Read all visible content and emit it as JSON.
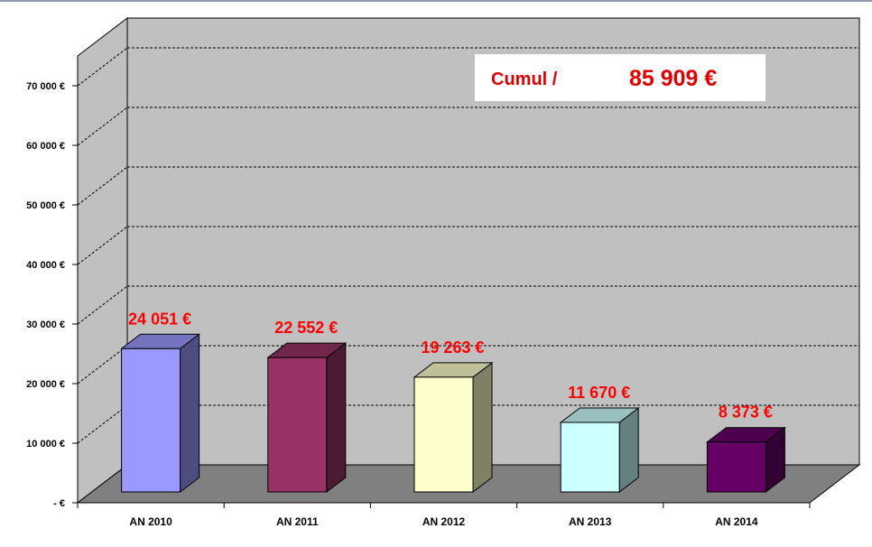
{
  "chart_data": {
    "type": "bar",
    "categories": [
      "AN 2010",
      "AN 2011",
      "AN 2012",
      "AN 2013",
      "AN 2014"
    ],
    "values": [
      24051,
      22552,
      19263,
      11670,
      8373
    ],
    "data_labels": [
      "24 051 €",
      "22 552 €",
      "19 263 €",
      "11 670 €",
      "8 373 €"
    ],
    "bar_colors": [
      "#9999ff",
      "#993366",
      "#ffffcc",
      "#ccffff",
      "#660066"
    ],
    "yticks": [
      0,
      10000,
      20000,
      30000,
      40000,
      50000,
      60000,
      70000
    ],
    "ytick_labels": [
      "-   €",
      "10 000 €",
      "20 000 €",
      "30 000 €",
      "40 000 €",
      "50 000 €",
      "60 000 €",
      "70 000 €"
    ],
    "ylim": [
      0,
      75000
    ],
    "grid": true,
    "three_d": true,
    "title": "",
    "xlabel": "",
    "ylabel": ""
  },
  "annotation": {
    "cumul_label": "Cumul /",
    "cumul_value": "85 909 €",
    "color": "#e00000"
  },
  "colors": {
    "wall": "#c0c0c0",
    "floor": "#808080",
    "label": "#ff0000"
  }
}
